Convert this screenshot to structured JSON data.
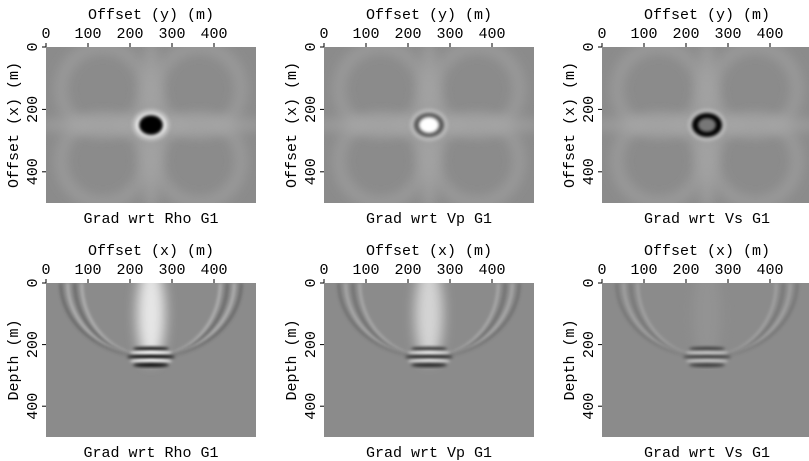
{
  "chart_data": [
    {
      "type": "image",
      "title": "Grad wrt Rho G1",
      "xlabel": "Offset (y) (m)",
      "ylabel": "Offset (x) (m)",
      "xlim": [
        0,
        500
      ],
      "ylim": [
        0,
        500
      ],
      "xticks": [
        0,
        100,
        200,
        300,
        400
      ],
      "yticks": [
        0,
        200,
        400
      ]
    },
    {
      "type": "image",
      "title": "Grad wrt Vp G1",
      "xlabel": "Offset (y) (m)",
      "ylabel": "Offset (x) (m)",
      "xlim": [
        0,
        500
      ],
      "ylim": [
        0,
        500
      ],
      "xticks": [
        0,
        100,
        200,
        300,
        400
      ],
      "yticks": [
        0,
        200,
        400
      ]
    },
    {
      "type": "image",
      "title": "Grad wrt Vs G1",
      "xlabel": "Offset (y) (m)",
      "ylabel": "Offset (x) (m)",
      "xlim": [
        0,
        500
      ],
      "ylim": [
        0,
        500
      ],
      "xticks": [
        0,
        100,
        200,
        300,
        400
      ],
      "yticks": [
        0,
        200,
        400
      ]
    },
    {
      "type": "image",
      "title": "Grad wrt Rho G1",
      "xlabel": "Offset (x) (m)",
      "ylabel": "Depth (m)",
      "xlim": [
        0,
        500
      ],
      "ylim": [
        0,
        500
      ],
      "xticks": [
        0,
        100,
        200,
        300,
        400
      ],
      "yticks": [
        0,
        200,
        400
      ]
    },
    {
      "type": "image",
      "title": "Grad wrt Vp G1",
      "xlabel": "Offset (x) (m)",
      "ylabel": "Depth (m)",
      "xlim": [
        0,
        500
      ],
      "ylim": [
        0,
        500
      ],
      "xticks": [
        0,
        100,
        200,
        300,
        400
      ],
      "yticks": [
        0,
        200,
        400
      ]
    },
    {
      "type": "image",
      "title": "Grad wrt Vs G1",
      "xlabel": "Offset (x) (m)",
      "ylabel": "Depth (m)",
      "xlim": [
        0,
        500
      ],
      "ylim": [
        0,
        500
      ],
      "xticks": [
        0,
        100,
        200,
        300,
        400
      ],
      "yticks": [
        0,
        200,
        400
      ]
    }
  ]
}
